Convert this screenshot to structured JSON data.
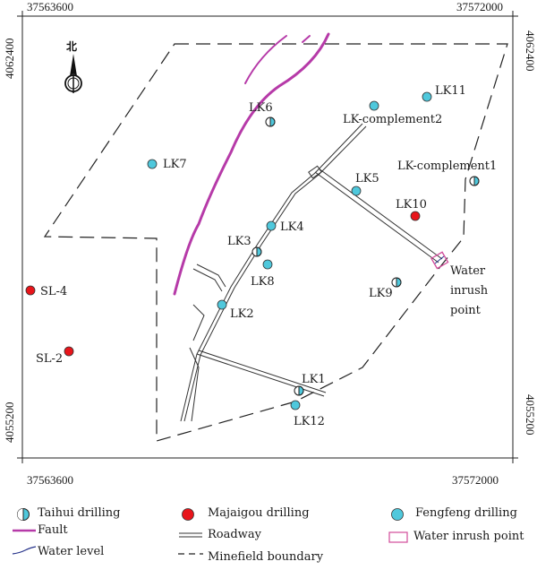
{
  "coords": {
    "top_left": "37563600",
    "top_right": "37572000",
    "bottom_left": "37563600",
    "bottom_right": "37572000",
    "left_top": "4062400",
    "left_bottom": "4055200",
    "right_top": "4062400",
    "right_bottom": "4055200"
  },
  "north_label": "北",
  "points": [
    {
      "id": "LK11",
      "type": "fengfeng",
      "label": "LK11"
    },
    {
      "id": "LK-complement2",
      "type": "fengfeng",
      "label": "LK-complement2"
    },
    {
      "id": "LK6",
      "type": "taihui",
      "label": "LK6"
    },
    {
      "id": "LK7",
      "type": "fengfeng",
      "label": "LK7"
    },
    {
      "id": "LK-complement1",
      "type": "taihui",
      "label": "LK-complement1"
    },
    {
      "id": "LK5",
      "type": "fengfeng",
      "label": "LK5"
    },
    {
      "id": "LK10",
      "type": "majiagou",
      "label": "LK10"
    },
    {
      "id": "LK4",
      "type": "fengfeng",
      "label": "LK4"
    },
    {
      "id": "LK3",
      "type": "taihui",
      "label": "LK3"
    },
    {
      "id": "LK8",
      "type": "fengfeng",
      "label": "LK8"
    },
    {
      "id": "LK9",
      "type": "taihui",
      "label": "LK9"
    },
    {
      "id": "LK2",
      "type": "fengfeng",
      "label": "LK2"
    },
    {
      "id": "LK1",
      "type": "taihui",
      "label": "LK1"
    },
    {
      "id": "LK12",
      "type": "fengfeng",
      "label": "LK12"
    },
    {
      "id": "SL-4",
      "type": "majiagou",
      "label": "SL-4"
    },
    {
      "id": "SL-2",
      "type": "majiagou",
      "label": "SL-2"
    }
  ],
  "water_inrush": {
    "line1": "Water",
    "line2": "inrush",
    "line3": "point"
  },
  "legend": {
    "taihui": "Taihui drilling",
    "majiagou": "Majaigou drilling",
    "fengfeng": "Fengfeng drilling",
    "fault": "Fault",
    "roadway": "Roadway",
    "water_inrush": "Water inrush point",
    "water_level": "Water level",
    "boundary": "Minefield boundary"
  },
  "colors": {
    "fengfeng": "#4fc8dc",
    "majiagou": "#e8151b",
    "fault": "#b63aa8",
    "water_level": "#27348b",
    "boundary": "#1a1a1a"
  },
  "icons": {
    "north": "north-arrow-icon",
    "taihui": "half-filled-circle-icon",
    "majiagou": "red-dot-icon",
    "fengfeng": "cyan-dot-icon",
    "inrush": "pink-rectangle-icon"
  }
}
